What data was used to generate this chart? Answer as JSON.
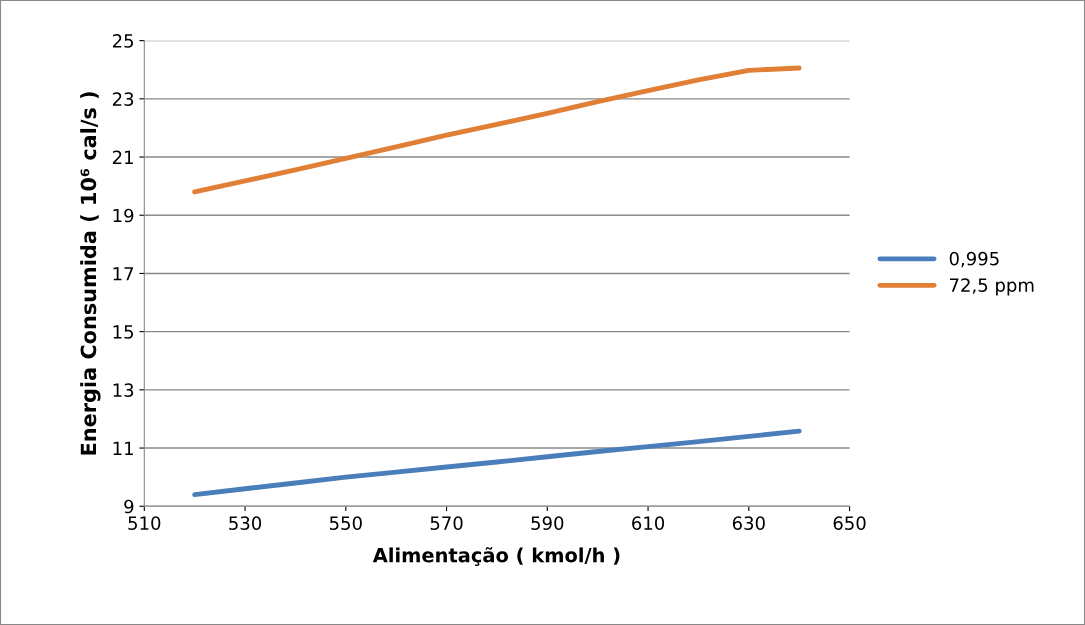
{
  "chart_data": {
    "type": "line",
    "xlabel": "Alimentação ( kmol/h )",
    "ylabel": "Energia Consumida ( 10⁶ cal/s )",
    "x": [
      520,
      530,
      540,
      550,
      560,
      570,
      580,
      590,
      600,
      610,
      620,
      630,
      640
    ],
    "series": [
      {
        "name": "0,995",
        "color": "#4a7ebb",
        "values": [
          9.4,
          9.6,
          9.8,
          10.0,
          10.17,
          10.35,
          10.52,
          10.7,
          10.88,
          11.05,
          11.22,
          11.4,
          11.58
        ]
      },
      {
        "name": "72,5 ppm",
        "color": "#e07f35",
        "values": [
          19.8,
          20.18,
          20.56,
          20.95,
          21.35,
          21.75,
          22.12,
          22.5,
          22.9,
          23.28,
          23.65,
          23.98,
          24.06
        ]
      }
    ],
    "xlim": [
      510,
      650
    ],
    "xticks": [
      510,
      530,
      550,
      570,
      590,
      610,
      630,
      650
    ],
    "ylim": [
      9,
      25
    ],
    "yticks": [
      9,
      11,
      13,
      15,
      17,
      19,
      21,
      23,
      25
    ],
    "grid": "y",
    "legend": "right",
    "marker": "none",
    "line_style": "solid"
  }
}
